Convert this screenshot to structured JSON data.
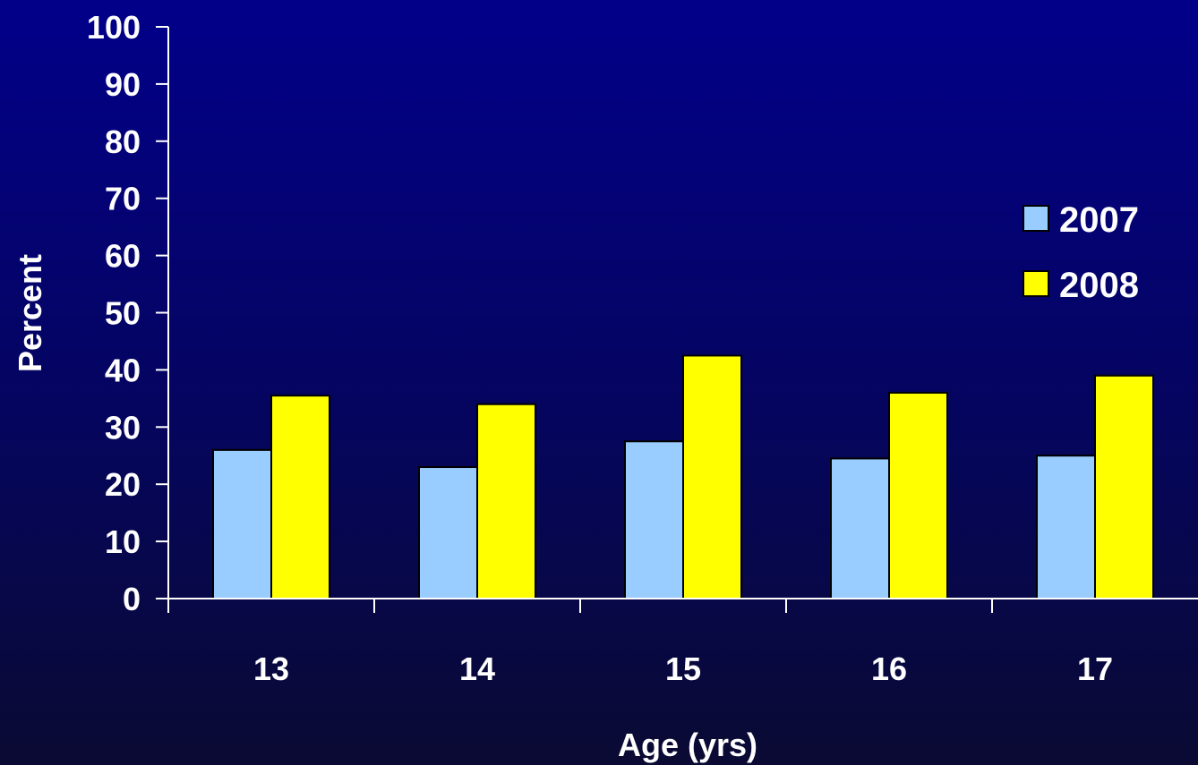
{
  "chart_data": {
    "type": "bar",
    "categories": [
      "13",
      "14",
      "15",
      "16",
      "17"
    ],
    "series": [
      {
        "name": "2007",
        "values": [
          26,
          23,
          27.5,
          24.5,
          25
        ],
        "color": "#99ccff"
      },
      {
        "name": "2008",
        "values": [
          35.5,
          34,
          42.5,
          36,
          39
        ],
        "color": "#ffff00"
      }
    ],
    "xlabel": "Age (yrs)",
    "ylabel": "Percent",
    "ylim": [
      0,
      100
    ],
    "yticks": [
      "0",
      "10",
      "20",
      "30",
      "40",
      "50",
      "60",
      "70",
      "80",
      "90",
      "100"
    ],
    "grid": false,
    "legend_position": "right"
  }
}
